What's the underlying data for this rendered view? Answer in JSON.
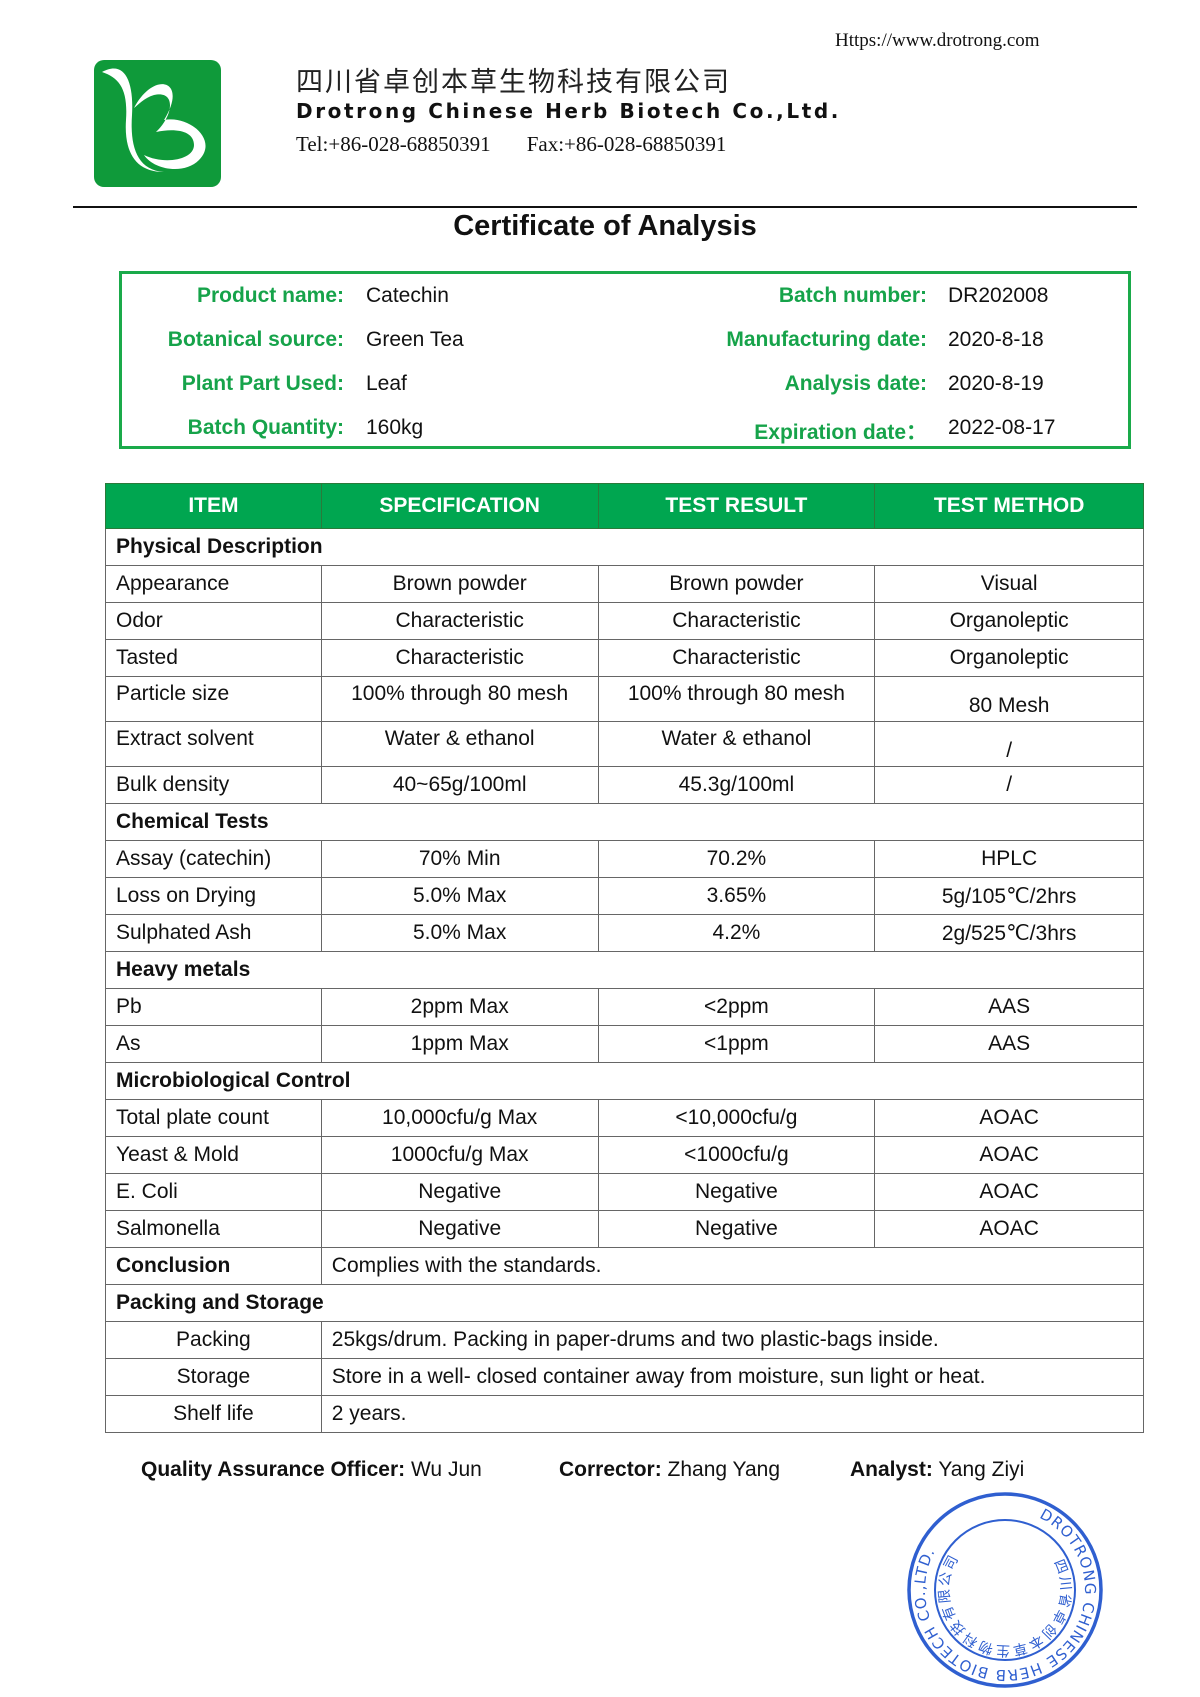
{
  "header": {
    "url": "Https://www.drotrong.com",
    "company_cn": "四川省卓创本草生物科技有限公司",
    "company_en": "Drotrong Chinese Herb Biotech Co.,Ltd.",
    "tel": "Tel:+86-028-68850391",
    "fax": "Fax:+86-028-68850391",
    "logo_color": "#0f9a3a"
  },
  "title": "Certificate of Analysis",
  "info": {
    "left": [
      {
        "label": "Product name:",
        "value": "Catechin"
      },
      {
        "label": "Botanical source:",
        "value": "Green Tea"
      },
      {
        "label": "Plant Part Used:",
        "value": "Leaf"
      },
      {
        "label": "Batch Quantity:",
        "value": "160kg"
      }
    ],
    "right": [
      {
        "label": "Batch number:",
        "value": "DR202008"
      },
      {
        "label": "Manufacturing date:",
        "value": "2020-8-18"
      },
      {
        "label": "Analysis date:",
        "value": "2020-8-19"
      },
      {
        "label": "Expiration date：",
        "value": "2022-08-17"
      }
    ]
  },
  "table": {
    "headers": [
      "ITEM",
      "SPECIFICATION",
      "TEST RESULT",
      "TEST METHOD"
    ],
    "sections": {
      "physical": "Physical Description",
      "chemical": "Chemical Tests",
      "heavy": "Heavy metals",
      "micro": "Microbiological Control",
      "packing": "Packing and Storage"
    },
    "rows": [
      [
        "Appearance",
        "Brown powder",
        "Brown powder",
        "Visual"
      ],
      [
        "Odor",
        "Characteristic",
        "Characteristic",
        "Organoleptic"
      ],
      [
        "Tasted",
        "Characteristic",
        "Characteristic",
        "Organoleptic"
      ],
      [
        "Particle size",
        "100% through 80 mesh",
        "100% through 80 mesh",
        "80 Mesh"
      ],
      [
        "Extract solvent",
        "Water & ethanol",
        "Water & ethanol",
        "/"
      ],
      [
        "Bulk density",
        "40~65g/100ml",
        "45.3g/100ml",
        "/"
      ],
      [
        "Assay (catechin)",
        "70% Min",
        "70.2%",
        "HPLC"
      ],
      [
        "Loss on Drying",
        "5.0% Max",
        "3.65%",
        "5g/105℃/2hrs"
      ],
      [
        "Sulphated Ash",
        "5.0% Max",
        "4.2%",
        "2g/525℃/3hrs"
      ],
      [
        "Pb",
        "2ppm Max",
        "<2ppm",
        "AAS"
      ],
      [
        "As",
        "1ppm Max",
        "<1ppm",
        "AAS"
      ],
      [
        "Total plate count",
        "10,000cfu/g Max",
        "<10,000cfu/g",
        "AOAC"
      ],
      [
        "Yeast & Mold",
        "1000cfu/g Max",
        "<1000cfu/g",
        "AOAC"
      ],
      [
        "E. Coli",
        "Negative",
        "Negative",
        "AOAC"
      ],
      [
        "Salmonella",
        "Negative",
        "Negative",
        "AOAC"
      ]
    ],
    "conclusion": {
      "label": "Conclusion",
      "value": "Complies with the standards."
    },
    "packing": [
      {
        "label": "Packing",
        "value": "25kgs/drum. Packing in paper-drums and two plastic-bags inside."
      },
      {
        "label": "Storage",
        "value": "Store in a well- closed container away from moisture, sun light or heat."
      },
      {
        "label": "Shelf life",
        "value": "2 years."
      }
    ]
  },
  "signatures": [
    {
      "label": "Quality Assurance Officer:",
      "name": "Wu Jun"
    },
    {
      "label": "Corrector:",
      "name": "Zhang Yang"
    },
    {
      "label": "Analyst:",
      "name": "Yang Ziyi"
    }
  ],
  "stamp": {
    "outer_text": "DROTRONG CHINESE HERB BIOTECH CO.,LTD.",
    "inner_text": "四川省卓创本草生物科技有限公司",
    "color": "#2f5fd0"
  }
}
